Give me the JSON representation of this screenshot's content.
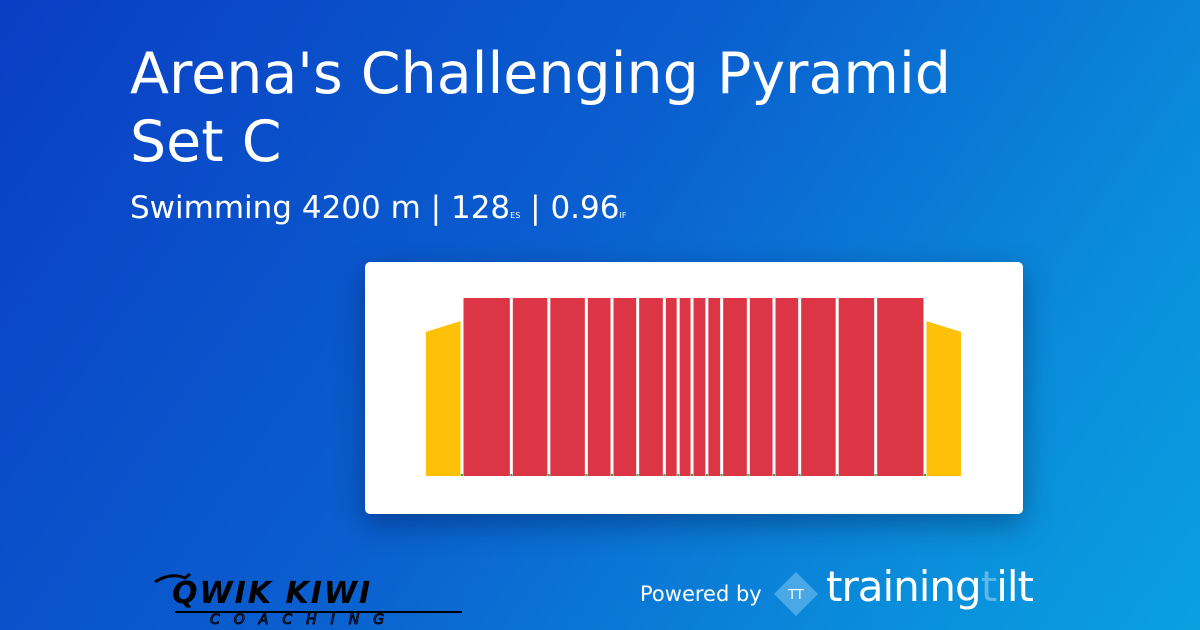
{
  "title": "Arena's Challenging Pyramid Set C",
  "subtitle": {
    "sport": "Swimming",
    "distance": "4200 m",
    "es_value": "128",
    "es_unit": "ES",
    "if_value": "0.96",
    "if_unit": "IF",
    "separator": "|"
  },
  "chart_data": {
    "type": "bar",
    "colors": {
      "warmup": "#ffc107",
      "main": "#dc3545",
      "rest": "#28a745"
    },
    "segments": [
      {
        "zone": "warmup",
        "width": 35,
        "from": 0.81,
        "to": 0.87
      },
      {
        "zone": "main",
        "width": 47,
        "value": 1
      },
      {
        "zone": "main",
        "width": 35,
        "value": 1
      },
      {
        "zone": "main",
        "width": 35,
        "value": 1
      },
      {
        "zone": "main",
        "width": 23,
        "value": 1
      },
      {
        "zone": "main",
        "width": 23,
        "value": 1
      },
      {
        "zone": "main",
        "width": 24,
        "value": 1
      },
      {
        "zone": "main",
        "width": 11,
        "value": 1
      },
      {
        "zone": "main",
        "width": 11,
        "value": 1
      },
      {
        "zone": "main",
        "width": 12,
        "value": 1
      },
      {
        "zone": "main",
        "width": 12,
        "value": 1
      },
      {
        "zone": "main",
        "width": 24,
        "value": 1
      },
      {
        "zone": "main",
        "width": 23,
        "value": 1
      },
      {
        "zone": "main",
        "width": 23,
        "value": 1
      },
      {
        "zone": "main",
        "width": 35,
        "value": 1
      },
      {
        "zone": "main",
        "width": 36,
        "value": 1
      },
      {
        "zone": "main",
        "width": 47,
        "value": 1
      },
      {
        "zone": "cooldown",
        "width": 35,
        "from": 0.87,
        "to": 0.81
      }
    ]
  },
  "footer": {
    "coach_logo": "QWIK KIWI COACHING",
    "powered_by": "Powered by",
    "brand_a": "training",
    "brand_b": "t",
    "brand_c": "ilt",
    "brand_mark": "TT"
  }
}
